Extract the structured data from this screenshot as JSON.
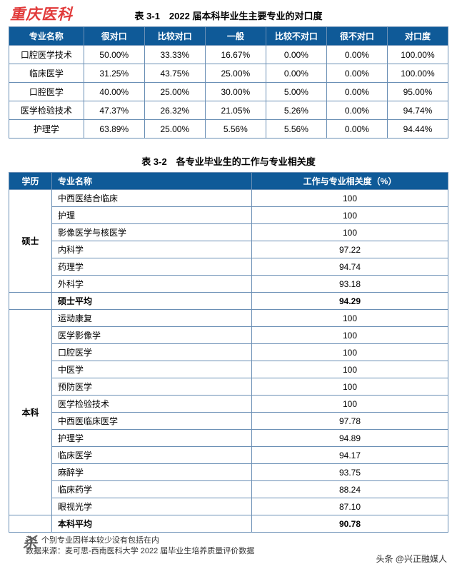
{
  "watermark_top": "重庆医科",
  "watermark_bottom": "杀",
  "attribution": "头条 @兴正融媒人",
  "table1": {
    "title": "表 3-1　2022 届本科毕业生主要专业的对口度",
    "headers": [
      "专业名称",
      "很对口",
      "比较对口",
      "一般",
      "比较不对口",
      "很不对口",
      "对口度"
    ],
    "rows": [
      [
        "口腔医学技术",
        "50.00%",
        "33.33%",
        "16.67%",
        "0.00%",
        "0.00%",
        "100.00%"
      ],
      [
        "临床医学",
        "31.25%",
        "43.75%",
        "25.00%",
        "0.00%",
        "0.00%",
        "100.00%"
      ],
      [
        "口腔医学",
        "40.00%",
        "25.00%",
        "30.00%",
        "5.00%",
        "0.00%",
        "95.00%"
      ],
      [
        "医学检验技术",
        "47.37%",
        "26.32%",
        "21.05%",
        "5.26%",
        "0.00%",
        "94.74%"
      ],
      [
        "护理学",
        "63.89%",
        "25.00%",
        "5.56%",
        "5.56%",
        "0.00%",
        "94.44%"
      ]
    ],
    "header_bg": "#0f5a98",
    "border_color": "#6a8fb5"
  },
  "table2": {
    "title": "表 3-2　各专业毕业生的工作与专业相关度",
    "headers": [
      "学历",
      "专业名称",
      "工作与专业相关度（%）"
    ],
    "groups": [
      {
        "degree": "硕士",
        "rows": [
          [
            "中西医结合临床",
            "100"
          ],
          [
            "护理",
            "100"
          ],
          [
            "影像医学与核医学",
            "100"
          ],
          [
            "内科学",
            "97.22"
          ],
          [
            "药理学",
            "94.74"
          ],
          [
            "外科学",
            "93.18"
          ]
        ],
        "avg": [
          "硕士平均",
          "94.29"
        ]
      },
      {
        "degree": "本科",
        "rows": [
          [
            "运动康复",
            "100"
          ],
          [
            "医学影像学",
            "100"
          ],
          [
            "口腔医学",
            "100"
          ],
          [
            "中医学",
            "100"
          ],
          [
            "预防医学",
            "100"
          ],
          [
            "医学检验技术",
            "100"
          ],
          [
            "中西医临床医学",
            "97.78"
          ],
          [
            "护理学",
            "94.89"
          ],
          [
            "临床医学",
            "94.17"
          ],
          [
            "麻醉学",
            "93.75"
          ],
          [
            "临床药学",
            "88.24"
          ],
          [
            "眼视光学",
            "87.10"
          ]
        ],
        "avg": [
          "本科平均",
          "90.78"
        ]
      }
    ],
    "header_bg": "#0f5a98",
    "border_color": "#6a8fb5"
  },
  "notes": {
    "line1": "注：个别专业因样本较少没有包括在内",
    "line2": "数据来源：麦可思-西南医科大学 2022 届毕业生培养质量评价数据"
  }
}
